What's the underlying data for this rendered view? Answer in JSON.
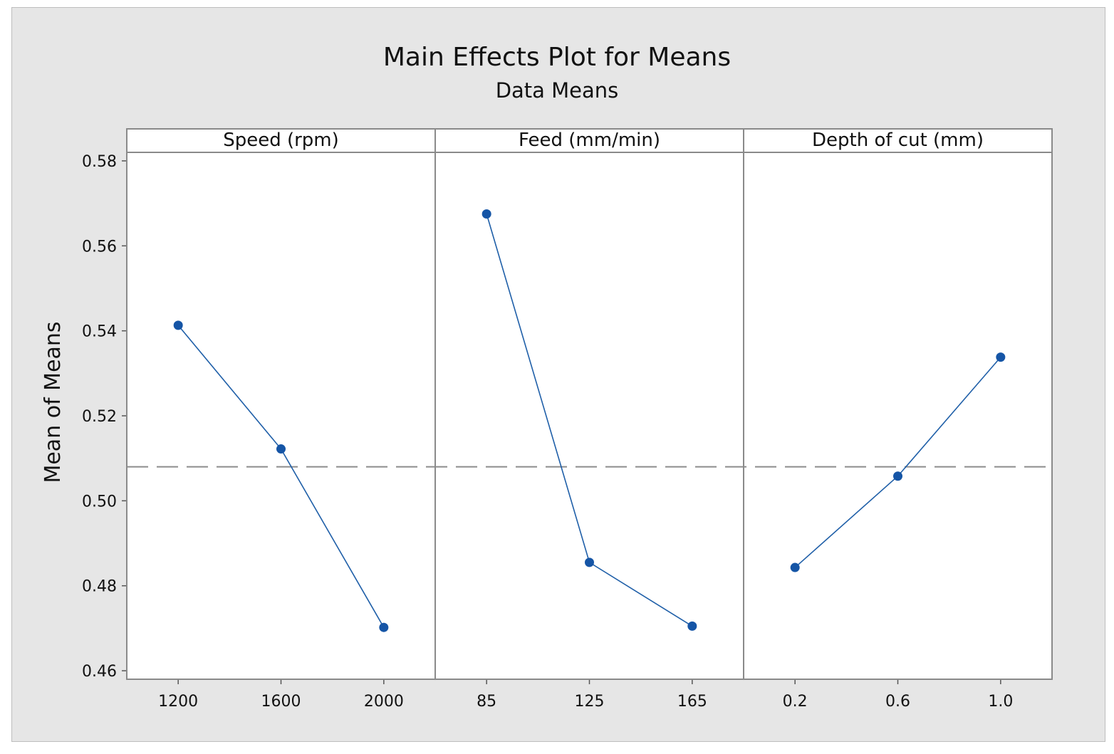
{
  "chart_data": {
    "type": "line",
    "title": "Main Effects Plot for Means",
    "subtitle": "Data Means",
    "ylabel": "Mean of Means",
    "ylim": [
      0.458,
      0.582
    ],
    "yticks": [
      "0.46",
      "0.48",
      "0.50",
      "0.52",
      "0.54",
      "0.56",
      "0.58"
    ],
    "reference_mean": 0.508,
    "grid": false,
    "panels": [
      {
        "title": "Speed (rpm)",
        "categories": [
          "1200",
          "1600",
          "2000"
        ],
        "values": [
          0.5413,
          0.5122,
          0.4702
        ]
      },
      {
        "title": "Feed (mm/min)",
        "categories": [
          "85",
          "125",
          "165"
        ],
        "values": [
          0.5675,
          0.4855,
          0.4705
        ]
      },
      {
        "title": "Depth of cut (mm)",
        "categories": [
          "0.2",
          "0.6",
          "1.0"
        ],
        "values": [
          0.4843,
          0.5058,
          0.5338
        ]
      }
    ],
    "colors": {
      "line": "#1f5fa8",
      "marker": "#1555a6",
      "reference": "#8c8c8c",
      "panel_border": "#8a8a8a",
      "background": "#e6e6e6"
    }
  }
}
